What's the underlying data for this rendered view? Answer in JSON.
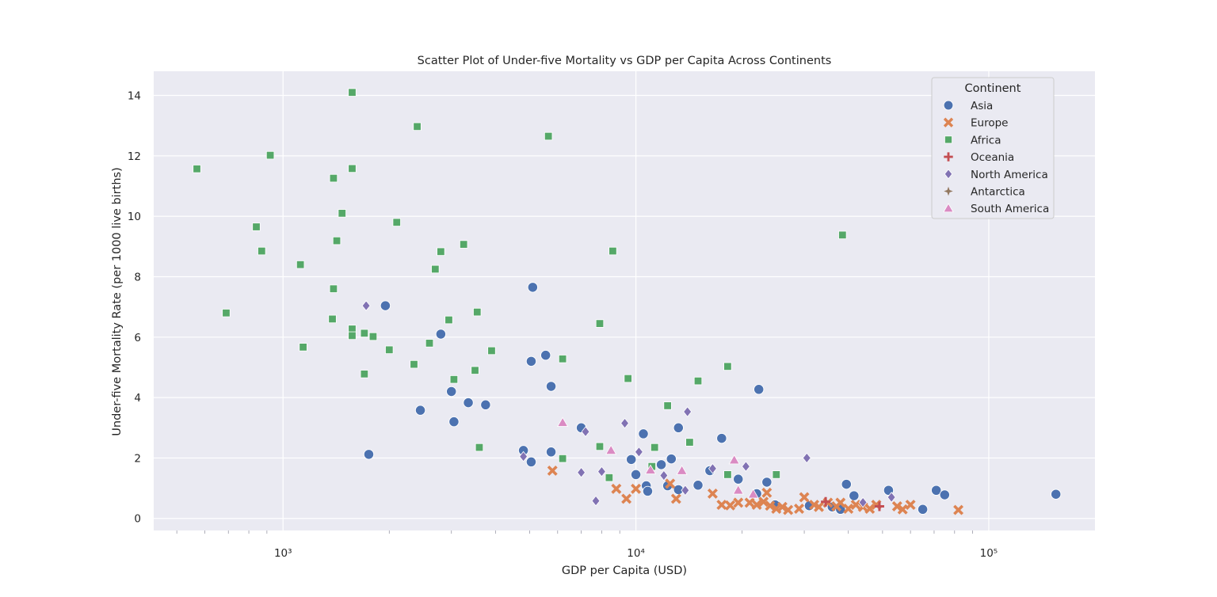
{
  "chart_data": {
    "type": "scatter",
    "title": "Scatter Plot of Under-five Mortality vs GDP per Capita Across Continents",
    "xlabel": "GDP per Capita (USD)",
    "ylabel": "Under-five Mortality Rate (per 1000 live births)",
    "xscale": "log",
    "xlim": [
      430,
      200000
    ],
    "ylim": [
      -0.4,
      14.8
    ],
    "xticks": [
      {
        "value": 1000,
        "label": "10³"
      },
      {
        "value": 10000,
        "label": "10⁴"
      },
      {
        "value": 100000,
        "label": "10⁵"
      }
    ],
    "yticks": [
      0,
      2,
      4,
      6,
      8,
      10,
      12,
      14
    ],
    "grid": true,
    "legend": {
      "title": "Continent",
      "placement": "top-right"
    },
    "series": [
      {
        "name": "Asia",
        "marker": "circle",
        "color": "#4c72b0",
        "points": [
          [
            1750,
            2.12
          ],
          [
            1950,
            7.04
          ],
          [
            2450,
            3.58
          ],
          [
            2800,
            6.1
          ],
          [
            3000,
            4.2
          ],
          [
            3050,
            3.2
          ],
          [
            3350,
            3.83
          ],
          [
            3750,
            3.76
          ],
          [
            4800,
            2.25
          ],
          [
            5050,
            1.87
          ],
          [
            5050,
            5.2
          ],
          [
            5100,
            7.65
          ],
          [
            5550,
            5.4
          ],
          [
            5750,
            4.37
          ],
          [
            5750,
            2.2
          ],
          [
            7000,
            3.0
          ],
          [
            9700,
            1.95
          ],
          [
            10000,
            1.45
          ],
          [
            10500,
            2.8
          ],
          [
            10700,
            1.08
          ],
          [
            10800,
            0.9
          ],
          [
            11800,
            1.78
          ],
          [
            12300,
            1.08
          ],
          [
            12600,
            1.97
          ],
          [
            13200,
            0.95
          ],
          [
            13200,
            3.0
          ],
          [
            15000,
            1.1
          ],
          [
            16200,
            1.58
          ],
          [
            17500,
            2.65
          ],
          [
            19500,
            1.3
          ],
          [
            22000,
            0.82
          ],
          [
            22300,
            4.27
          ],
          [
            23500,
            1.2
          ],
          [
            24800,
            0.45
          ],
          [
            31000,
            0.42
          ],
          [
            36000,
            0.38
          ],
          [
            38000,
            0.3
          ],
          [
            39500,
            1.13
          ],
          [
            41500,
            0.75
          ],
          [
            52000,
            0.93
          ],
          [
            65000,
            0.3
          ],
          [
            71000,
            0.93
          ],
          [
            75000,
            0.78
          ],
          [
            155000,
            0.8
          ]
        ]
      },
      {
        "name": "Europe",
        "marker": "x",
        "color": "#dd8452",
        "points": [
          [
            5800,
            1.58
          ],
          [
            8800,
            0.98
          ],
          [
            9400,
            0.65
          ],
          [
            10000,
            0.98
          ],
          [
            12500,
            1.15
          ],
          [
            13000,
            0.65
          ],
          [
            16500,
            0.82
          ],
          [
            17500,
            0.45
          ],
          [
            18500,
            0.43
          ],
          [
            19500,
            0.52
          ],
          [
            21000,
            0.52
          ],
          [
            22000,
            0.45
          ],
          [
            23000,
            0.55
          ],
          [
            23500,
            0.85
          ],
          [
            24000,
            0.42
          ],
          [
            25000,
            0.32
          ],
          [
            26000,
            0.38
          ],
          [
            27000,
            0.28
          ],
          [
            29000,
            0.32
          ],
          [
            30000,
            0.7
          ],
          [
            32000,
            0.45
          ],
          [
            33000,
            0.38
          ],
          [
            35000,
            0.52
          ],
          [
            37000,
            0.4
          ],
          [
            38000,
            0.52
          ],
          [
            40000,
            0.32
          ],
          [
            42000,
            0.45
          ],
          [
            44000,
            0.38
          ],
          [
            46000,
            0.32
          ],
          [
            48000,
            0.45
          ],
          [
            55000,
            0.4
          ],
          [
            57000,
            0.3
          ],
          [
            60000,
            0.45
          ],
          [
            82000,
            0.28
          ]
        ]
      },
      {
        "name": "Africa",
        "marker": "square",
        "color": "#55a868",
        "points": [
          [
            570,
            11.57
          ],
          [
            690,
            6.8
          ],
          [
            840,
            9.65
          ],
          [
            870,
            8.85
          ],
          [
            920,
            12.02
          ],
          [
            1120,
            8.4
          ],
          [
            1140,
            5.67
          ],
          [
            1380,
            6.6
          ],
          [
            1390,
            11.26
          ],
          [
            1390,
            7.6
          ],
          [
            1420,
            9.19
          ],
          [
            1470,
            10.1
          ],
          [
            1570,
            14.1
          ],
          [
            1570,
            11.58
          ],
          [
            1570,
            6.27
          ],
          [
            1570,
            6.05
          ],
          [
            1700,
            6.13
          ],
          [
            1700,
            4.78
          ],
          [
            1800,
            6.02
          ],
          [
            2000,
            5.58
          ],
          [
            2100,
            9.8
          ],
          [
            2350,
            5.1
          ],
          [
            2400,
            12.97
          ],
          [
            2600,
            5.8
          ],
          [
            2700,
            8.25
          ],
          [
            2800,
            8.83
          ],
          [
            2950,
            6.57
          ],
          [
            3050,
            4.6
          ],
          [
            3250,
            9.07
          ],
          [
            3500,
            4.9
          ],
          [
            3550,
            6.83
          ],
          [
            3600,
            2.35
          ],
          [
            3900,
            5.55
          ],
          [
            5650,
            12.65
          ],
          [
            6200,
            5.28
          ],
          [
            6200,
            1.98
          ],
          [
            7900,
            6.45
          ],
          [
            7900,
            2.38
          ],
          [
            8400,
            1.35
          ],
          [
            8600,
            8.85
          ],
          [
            9500,
            4.63
          ],
          [
            11100,
            1.72
          ],
          [
            11300,
            2.35
          ],
          [
            12300,
            3.73
          ],
          [
            14200,
            2.52
          ],
          [
            15000,
            4.55
          ],
          [
            18200,
            5.03
          ],
          [
            18200,
            1.45
          ],
          [
            25000,
            1.45
          ],
          [
            38500,
            9.38
          ]
        ]
      },
      {
        "name": "Oceania",
        "marker": "plus",
        "color": "#c44e52",
        "points": [
          [
            34500,
            0.55
          ],
          [
            49000,
            0.4
          ]
        ]
      },
      {
        "name": "North America",
        "marker": "diamond",
        "color": "#8172b3",
        "points": [
          [
            1720,
            7.04
          ],
          [
            4800,
            2.05
          ],
          [
            7000,
            1.52
          ],
          [
            7200,
            2.87
          ],
          [
            7700,
            0.58
          ],
          [
            8000,
            1.55
          ],
          [
            9300,
            3.15
          ],
          [
            10200,
            2.2
          ],
          [
            12000,
            1.42
          ],
          [
            13800,
            0.93
          ],
          [
            14000,
            3.53
          ],
          [
            16500,
            1.65
          ],
          [
            20500,
            1.72
          ],
          [
            30500,
            2.0
          ],
          [
            44000,
            0.53
          ],
          [
            53000,
            0.7
          ]
        ]
      },
      {
        "name": "Antarctica",
        "marker": "star4",
        "color": "#937860",
        "points": []
      },
      {
        "name": "South America",
        "marker": "triangle",
        "color": "#da8bc3",
        "points": [
          [
            6200,
            3.17
          ],
          [
            8500,
            2.25
          ],
          [
            11000,
            1.6
          ],
          [
            13500,
            1.58
          ],
          [
            19000,
            1.93
          ],
          [
            19500,
            0.93
          ],
          [
            21500,
            0.8
          ]
        ]
      }
    ]
  }
}
